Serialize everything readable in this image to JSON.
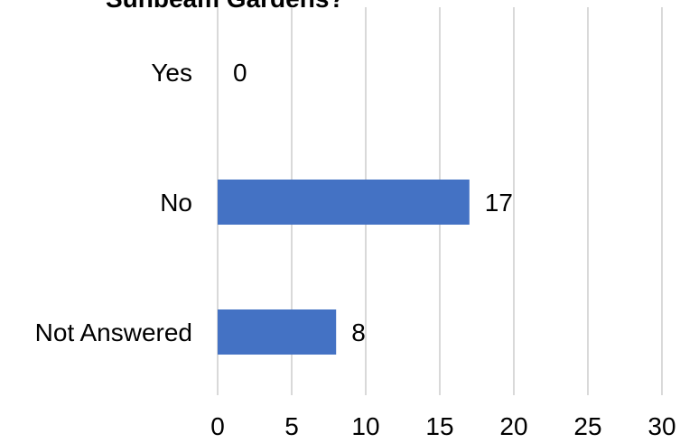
{
  "chart_data": {
    "type": "bar",
    "orientation": "horizontal",
    "title_partial": "Sunbeam Gardens?",
    "categories": [
      "Yes",
      "No",
      "Not Answered"
    ],
    "values": [
      0,
      17,
      8
    ],
    "data_labels": [
      "0",
      "17",
      "8"
    ],
    "xlim": [
      0,
      30
    ],
    "xticks": [
      0,
      5,
      10,
      15,
      20,
      25,
      30
    ],
    "grid": "vertical",
    "bar_color": "#4472C4",
    "gridline_color": "#D9D9D9"
  }
}
